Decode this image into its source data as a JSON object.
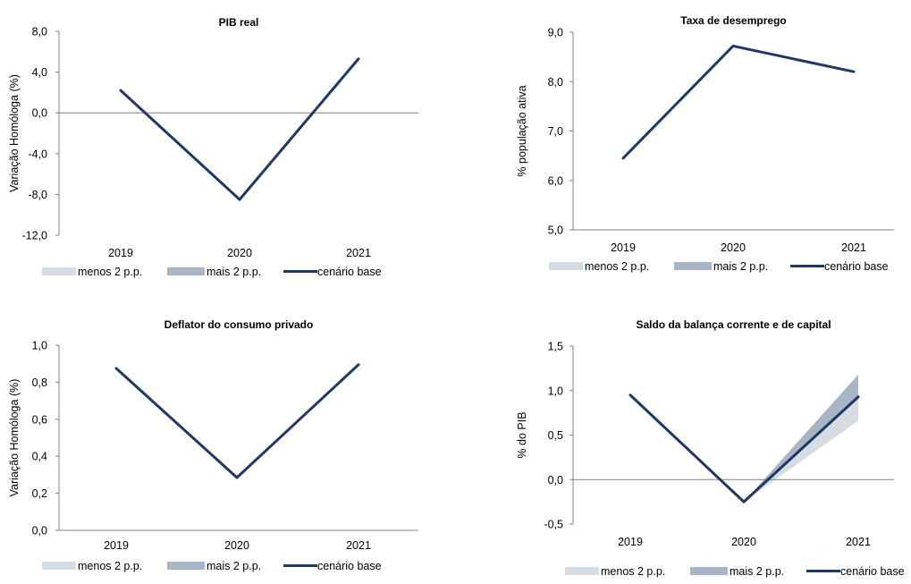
{
  "colors": {
    "base_line": "#1f3864",
    "band_lower": "#d6dce4",
    "band_upper": "#a9b4c6",
    "axis": "#808080"
  },
  "legend": {
    "lower": "menos 2 p.p.",
    "upper": "mais 2 p.p.",
    "base": "cenário base"
  },
  "chart_data": [
    {
      "type": "line",
      "title": "PIB real",
      "ylabel": "Variação Homóloga (%)",
      "xlabel": "",
      "categories": [
        "2019",
        "2020",
        "2021"
      ],
      "ylim": [
        -12.0,
        8.0
      ],
      "yticks": [
        "8,0",
        "4,0",
        "0,0",
        "-4,0",
        "-8,0",
        "-12,0"
      ],
      "ytick_values": [
        8.0,
        4.0,
        0.0,
        -4.0,
        -8.0,
        -12.0
      ],
      "series": [
        {
          "name": "cenário base",
          "values": [
            2.2,
            -8.5,
            5.3
          ]
        }
      ],
      "band": null,
      "zero_line": true,
      "grid": false,
      "legend_position": "bottom"
    },
    {
      "type": "line",
      "title": "Taxa de desemprego",
      "ylabel": "% população ativa",
      "xlabel": "",
      "categories": [
        "2019",
        "2020",
        "2021"
      ],
      "ylim": [
        5.0,
        9.0
      ],
      "yticks": [
        "9,0",
        "8,0",
        "7,0",
        "6,0",
        "5,0"
      ],
      "ytick_values": [
        9.0,
        8.0,
        7.0,
        6.0,
        5.0
      ],
      "series": [
        {
          "name": "cenário base",
          "values": [
            6.45,
            8.72,
            8.2
          ]
        }
      ],
      "band": null,
      "zero_line": false,
      "grid": false,
      "legend_position": "bottom"
    },
    {
      "type": "line",
      "title": "Deflator do consumo privado",
      "ylabel": "Variação Homóloga (%)",
      "xlabel": "",
      "categories": [
        "2019",
        "2020",
        "2021"
      ],
      "ylim": [
        0.0,
        1.0
      ],
      "yticks": [
        "1,0",
        "0,8",
        "0,6",
        "0,4",
        "0,2",
        "0,0"
      ],
      "ytick_values": [
        1.0,
        0.8,
        0.6,
        0.4,
        0.2,
        0.0
      ],
      "series": [
        {
          "name": "cenário base",
          "values": [
            0.875,
            0.285,
            0.895
          ]
        }
      ],
      "band": null,
      "zero_line": false,
      "grid": false,
      "legend_position": "bottom"
    },
    {
      "type": "area",
      "title": "Saldo da balança corrente e de capital",
      "ylabel": "% do PIB",
      "xlabel": "",
      "categories": [
        "2019",
        "2020",
        "2021"
      ],
      "ylim": [
        -0.5,
        1.5
      ],
      "yticks": [
        "1,5",
        "1,0",
        "0,5",
        "0,0",
        "-0,5"
      ],
      "ytick_values": [
        1.5,
        1.0,
        0.5,
        0.0,
        -0.5
      ],
      "series": [
        {
          "name": "cenário base",
          "values": [
            0.95,
            -0.25,
            0.93
          ]
        }
      ],
      "band": {
        "lower": [
          0.95,
          -0.25,
          0.66
        ],
        "upper": [
          0.95,
          -0.25,
          1.18
        ]
      },
      "zero_line": true,
      "grid": false,
      "legend_position": "bottom"
    }
  ]
}
